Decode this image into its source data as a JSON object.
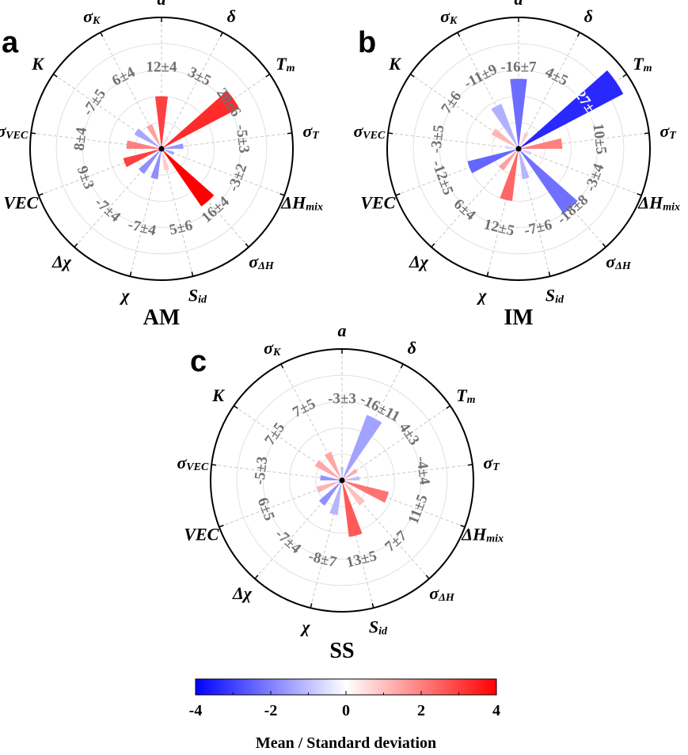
{
  "chart_data": [
    {
      "type": "polar_bar",
      "panel": "a",
      "title": "AM",
      "rmax": 30,
      "categories": [
        "a",
        "δ",
        "T_m",
        "σ_T",
        "ΔH_mix",
        "σ_ΔH",
        "S_id",
        "χ",
        "Δχ",
        "VEC",
        "σ_VEC",
        "K",
        "σ_K"
      ],
      "category_labels": [
        {
          "main": "a",
          "sub": ""
        },
        {
          "main": "δ",
          "sub": ""
        },
        {
          "main": "T",
          "sub": "m"
        },
        {
          "main": "σ",
          "sub": "T"
        },
        {
          "main": "ΔH",
          "sub": "mix"
        },
        {
          "main": "σ",
          "sub": "ΔH"
        },
        {
          "main": "S",
          "sub": "id"
        },
        {
          "main": "χ",
          "sub": ""
        },
        {
          "main": "Δχ",
          "sub": ""
        },
        {
          "main": "VEC",
          "sub": ""
        },
        {
          "main": "σ",
          "sub": "VEC"
        },
        {
          "main": "K",
          "sub": ""
        },
        {
          "main": "σ",
          "sub": "K"
        }
      ],
      "mean": [
        12,
        3,
        20,
        -5,
        -3,
        16,
        5,
        -7,
        -7,
        9,
        8,
        -7,
        6
      ],
      "std": [
        4,
        5,
        6,
        3,
        2,
        4,
        6,
        4,
        4,
        3,
        4,
        5,
        4
      ],
      "value_labels": [
        "12±4",
        "3±5",
        "20±6",
        "-5±3",
        "-3±2",
        "16±4",
        "5±6",
        "-7±4",
        "-7±4",
        "9±3",
        "8±4",
        "-7±5",
        "6±4"
      ]
    },
    {
      "type": "polar_bar",
      "panel": "b",
      "title": "IM",
      "rmax": 30,
      "categories": [
        "a",
        "δ",
        "T_m",
        "σ_T",
        "ΔH_mix",
        "σ_ΔH",
        "S_id",
        "χ",
        "Δχ",
        "VEC",
        "σ_VEC",
        "K",
        "σ_K"
      ],
      "category_labels": [
        {
          "main": "a",
          "sub": ""
        },
        {
          "main": "δ",
          "sub": ""
        },
        {
          "main": "T",
          "sub": "m"
        },
        {
          "main": "σ",
          "sub": "T"
        },
        {
          "main": "ΔH",
          "sub": "mix"
        },
        {
          "main": "σ",
          "sub": "ΔH"
        },
        {
          "main": "S",
          "sub": "id"
        },
        {
          "main": "χ",
          "sub": ""
        },
        {
          "main": "Δχ",
          "sub": ""
        },
        {
          "main": "VEC",
          "sub": ""
        },
        {
          "main": "σ",
          "sub": "VEC"
        },
        {
          "main": "K",
          "sub": ""
        },
        {
          "main": "σ",
          "sub": "K"
        }
      ],
      "mean": [
        -16,
        4,
        -27,
        10,
        -3,
        -18,
        -7,
        12,
        6,
        -12,
        -3,
        7,
        -11
      ],
      "std": [
        7,
        5,
        8,
        5,
        4,
        8,
        6,
        5,
        4,
        5,
        5,
        6,
        9
      ],
      "value_labels": [
        "-16±7",
        "4±5",
        "-27±8",
        "10±5",
        "-3±4",
        "-18±8",
        "-7±6",
        "12±5",
        "6±4",
        "-12±5",
        "-3±5",
        "7±6",
        "-11±9"
      ]
    },
    {
      "type": "polar_bar",
      "panel": "c",
      "title": "SS",
      "rmax": 30,
      "categories": [
        "a",
        "δ",
        "T_m",
        "σ_T",
        "ΔH_mix",
        "σ_ΔH",
        "S_id",
        "χ",
        "Δχ",
        "VEC",
        "σ_VEC",
        "K",
        "σ_K"
      ],
      "category_labels": [
        {
          "main": "a",
          "sub": ""
        },
        {
          "main": "δ",
          "sub": ""
        },
        {
          "main": "T",
          "sub": "m"
        },
        {
          "main": "σ",
          "sub": "T"
        },
        {
          "main": "ΔH",
          "sub": "mix"
        },
        {
          "main": "σ",
          "sub": "ΔH"
        },
        {
          "main": "S",
          "sub": "id"
        },
        {
          "main": "χ",
          "sub": ""
        },
        {
          "main": "Δχ",
          "sub": ""
        },
        {
          "main": "VEC",
          "sub": ""
        },
        {
          "main": "σ",
          "sub": "VEC"
        },
        {
          "main": "K",
          "sub": ""
        },
        {
          "main": "σ",
          "sub": "K"
        }
      ],
      "mean": [
        -3,
        -16,
        4,
        -4,
        11,
        7,
        13,
        -8,
        -7,
        6,
        -5,
        7,
        7
      ],
      "std": [
        3,
        11,
        3,
        4,
        5,
        7,
        5,
        7,
        4,
        5,
        3,
        5,
        5
      ],
      "value_labels": [
        "-3±3",
        "-16±11",
        "4±3",
        "-4±4",
        "11±5",
        "7±7",
        "13±5",
        "-8±7",
        "-7±4",
        "6±5",
        "-5±3",
        "7±5",
        "7±5"
      ]
    }
  ],
  "colorbar": {
    "title": "Mean / Standard deviation",
    "min": -4,
    "max": 4,
    "ticks": [
      "-4",
      "-2",
      "0",
      "2",
      "4"
    ],
    "colors": {
      "negative": "#0000ff",
      "zero": "#ffffff",
      "positive": "#ff0000"
    }
  }
}
